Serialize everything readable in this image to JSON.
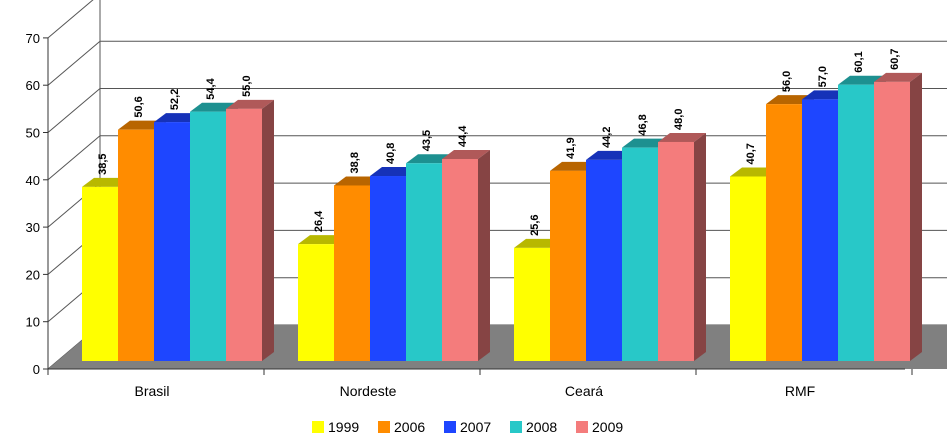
{
  "chart_data": {
    "type": "bar",
    "categories": [
      "Brasil",
      "Nordeste",
      "Ceará",
      "RMF"
    ],
    "series": [
      {
        "name": "1999",
        "values": [
          38.5,
          26.4,
          25.6,
          40.7
        ],
        "labels": [
          "38,5",
          "26,4",
          "25,6",
          "40,7"
        ],
        "color": "#ffff00"
      },
      {
        "name": "2006",
        "values": [
          50.6,
          38.8,
          41.9,
          56.0
        ],
        "labels": [
          "50,6",
          "38,8",
          "41,9",
          "56,0"
        ],
        "color": "#ff8c00"
      },
      {
        "name": "2007",
        "values": [
          52.2,
          40.8,
          44.2,
          57.0
        ],
        "labels": [
          "52,2",
          "40,8",
          "44,2",
          "57,0"
        ],
        "color": "#1e46ff"
      },
      {
        "name": "2008",
        "values": [
          54.4,
          43.5,
          46.8,
          60.1
        ],
        "labels": [
          "54,4",
          "43,5",
          "46,8",
          "60,1"
        ],
        "color": "#28c8c8"
      },
      {
        "name": "2009",
        "values": [
          55.0,
          44.4,
          48.0,
          60.7
        ],
        "labels": [
          "55,0",
          "44,4",
          "48,0",
          "60,7"
        ],
        "color": "#f47c7c"
      }
    ],
    "ylim": [
      0,
      70
    ],
    "yticks": [
      "0",
      "10",
      "20",
      "30",
      "40",
      "50",
      "60",
      "70"
    ],
    "grid": true,
    "legend_position": "bottom",
    "floor_color": "#808080"
  }
}
